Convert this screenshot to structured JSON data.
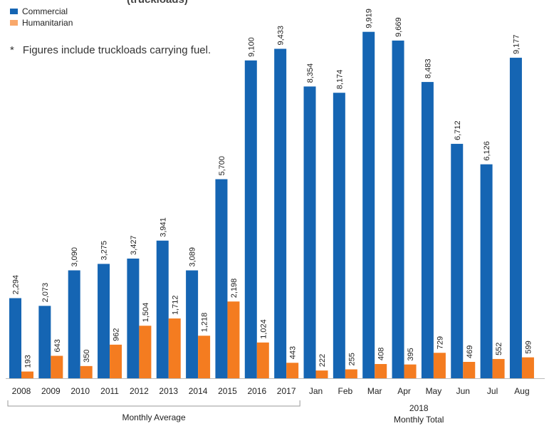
{
  "partial_title": "(truckloads)",
  "note": {
    "star": "*",
    "text": "Figures include truckloads carrying fuel."
  },
  "legend": {
    "commercial": "Commercial",
    "humanitarian": "Humanitarian"
  },
  "colors": {
    "commercial": "#1565b3",
    "humanitarian": "#f47c20"
  },
  "chart_data": {
    "type": "bar",
    "categories": [
      "2008",
      "2009",
      "2010",
      "2011",
      "2012",
      "2013",
      "2014",
      "2015",
      "2016",
      "2017",
      "Jan",
      "Feb",
      "Mar",
      "Apr",
      "May",
      "Jun",
      "Jul",
      "Aug"
    ],
    "series": [
      {
        "name": "Commercial",
        "values": [
          2294,
          2073,
          3090,
          3275,
          3427,
          3941,
          3089,
          5700,
          9100,
          9433,
          8354,
          8174,
          9919,
          9669,
          8483,
          6712,
          6126,
          9177
        ]
      },
      {
        "name": "Humanitarian",
        "values": [
          193,
          643,
          350,
          962,
          1504,
          1712,
          1218,
          2198,
          1024,
          443,
          222,
          255,
          408,
          395,
          729,
          469,
          552,
          599
        ]
      }
    ],
    "value_labels": {
      "commercial": [
        "2,294",
        "2,073",
        "3,090",
        "3,275",
        "3,427",
        "3,941",
        "3,089",
        "5,700",
        "9,100",
        "9,433",
        "8,354",
        "8,174",
        "9,919",
        "9,669",
        "8,483",
        "6,712",
        "6,126",
        "9,177"
      ],
      "humanitarian": [
        "193",
        "643",
        "350",
        "962",
        "1,504",
        "1,712",
        "1,218",
        "2,198",
        "1,024",
        "443",
        "222",
        "255",
        "408",
        "395",
        "729",
        "469",
        "552",
        "599"
      ]
    },
    "groups": [
      {
        "label": "Monthly Average",
        "from": 0,
        "to": 9
      },
      {
        "label": "Monthly Total",
        "year": "2018",
        "from": 10,
        "to": 17
      }
    ],
    "ylim": [
      0,
      10300
    ],
    "grid": false,
    "legend_position": "top-left"
  }
}
